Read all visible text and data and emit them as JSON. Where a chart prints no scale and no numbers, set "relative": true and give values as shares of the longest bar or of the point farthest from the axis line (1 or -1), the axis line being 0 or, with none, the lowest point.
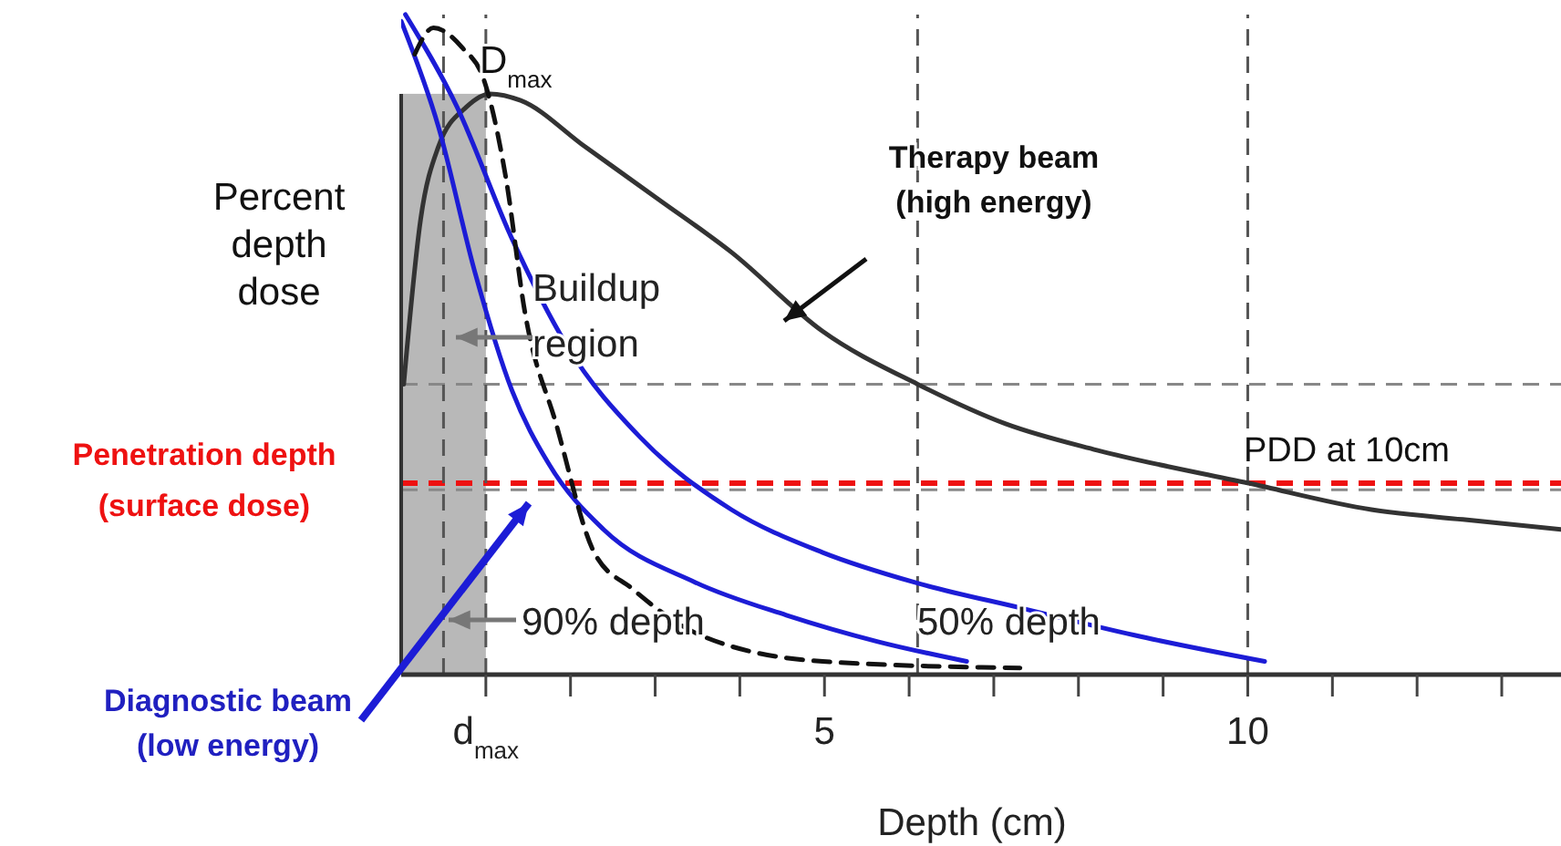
{
  "chart_data": {
    "type": "line",
    "relative": true,
    "xlabel": "Depth (cm)",
    "ylabel": "Percent depth dose",
    "xlim": [
      0,
      13.7
    ],
    "xticks": [
      {
        "value": 1,
        "label": "d$_{max}$"
      },
      {
        "value": 2,
        "label": null
      },
      {
        "value": 3,
        "label": null
      },
      {
        "value": 4,
        "label": null
      },
      5,
      {
        "value": 6,
        "label": null
      },
      {
        "value": 7,
        "label": null
      },
      {
        "value": 8,
        "label": null
      },
      {
        "value": 9,
        "label": null
      },
      10,
      {
        "value": 11,
        "label": null
      },
      {
        "value": 12,
        "label": null
      },
      {
        "value": 13,
        "label": null
      }
    ],
    "series": [
      {
        "color": "#333333",
        "x": [
          0.03,
          0.23,
          0.44,
          0.77,
          1.05,
          1.41,
          2.17,
          3.04,
          3.9,
          4.98,
          6.1,
          7.14,
          8.22,
          10.01,
          11.46,
          12.54,
          13.7
        ],
        "values": [
          0.44,
          0.69,
          0.8,
          0.86,
          0.88,
          0.87,
          0.8,
          0.72,
          0.64,
          0.52,
          0.44,
          0.38,
          0.34,
          0.29,
          0.25,
          0.235,
          0.22
        ]
      },
      {
        "color": "#1c1cd6",
        "x": [
          0,
          0.44,
          0.87,
          1.31,
          1.74,
          2.39,
          3.47,
          4.55,
          5.63,
          6.68
        ],
        "values": [
          0.99,
          0.83,
          0.61,
          0.43,
          0.32,
          0.22,
          0.14,
          0.09,
          0.05,
          0.02
        ]
      },
      {
        "color": "#1c1cd6",
        "x": [
          0.05,
          0.66,
          1.31,
          1.95,
          2.82,
          3.9,
          4.98,
          6.06,
          7.35,
          8.65,
          10.2
        ],
        "values": [
          1,
          0.86,
          0.66,
          0.5,
          0.36,
          0.25,
          0.185,
          0.14,
          0.1,
          0.06,
          0.02
        ]
      },
      {
        "color": "#111111",
        "line_style": "dashed",
        "x": [
          0.16,
          0.38,
          0.72,
          0.98,
          1.24,
          1.46,
          1.83,
          2.28,
          2.73,
          3.53,
          4.98,
          7.31
        ],
        "values": [
          0.94,
          0.98,
          0.95,
          0.9,
          0.75,
          0.55,
          0.38,
          0.185,
          0.13,
          0.06,
          0.02,
          0.01
        ]
      }
    ],
    "ref_lines": [
      {
        "axis": "y",
        "value": 0.44,
        "color": "#888888",
        "line_style": "dashed"
      },
      {
        "axis": "y",
        "value": 0.28,
        "color": "#888888",
        "line_style": "dashed"
      },
      {
        "axis": "y",
        "value": 0.29,
        "color": "#ee1111",
        "line_style": "dashed",
        "label": "Penetration depth\n(surface dose)"
      },
      {
        "axis": "x",
        "value": 0.5,
        "color": "#555555",
        "line_style": "dashed"
      },
      {
        "axis": "x",
        "value": 1,
        "color": "#555555",
        "line_style": "dashed"
      },
      {
        "axis": "x",
        "value": 6.1,
        "color": "#555555",
        "line_style": "dashed"
      },
      {
        "axis": "x",
        "value": 10,
        "color": "#555555",
        "line_style": "dashed"
      }
    ],
    "bands": [
      {
        "axis": "x",
        "from": 0,
        "to": 1,
        "color": "#b8b8b8"
      }
    ],
    "annotations": [
      "D$_{max}$",
      "Therapy beam\n(high energy)",
      "Buildup\nregion",
      "PDD at 10cm",
      "90% depth",
      "50% depth",
      "Diagnostic beam\n(low energy)"
    ]
  }
}
